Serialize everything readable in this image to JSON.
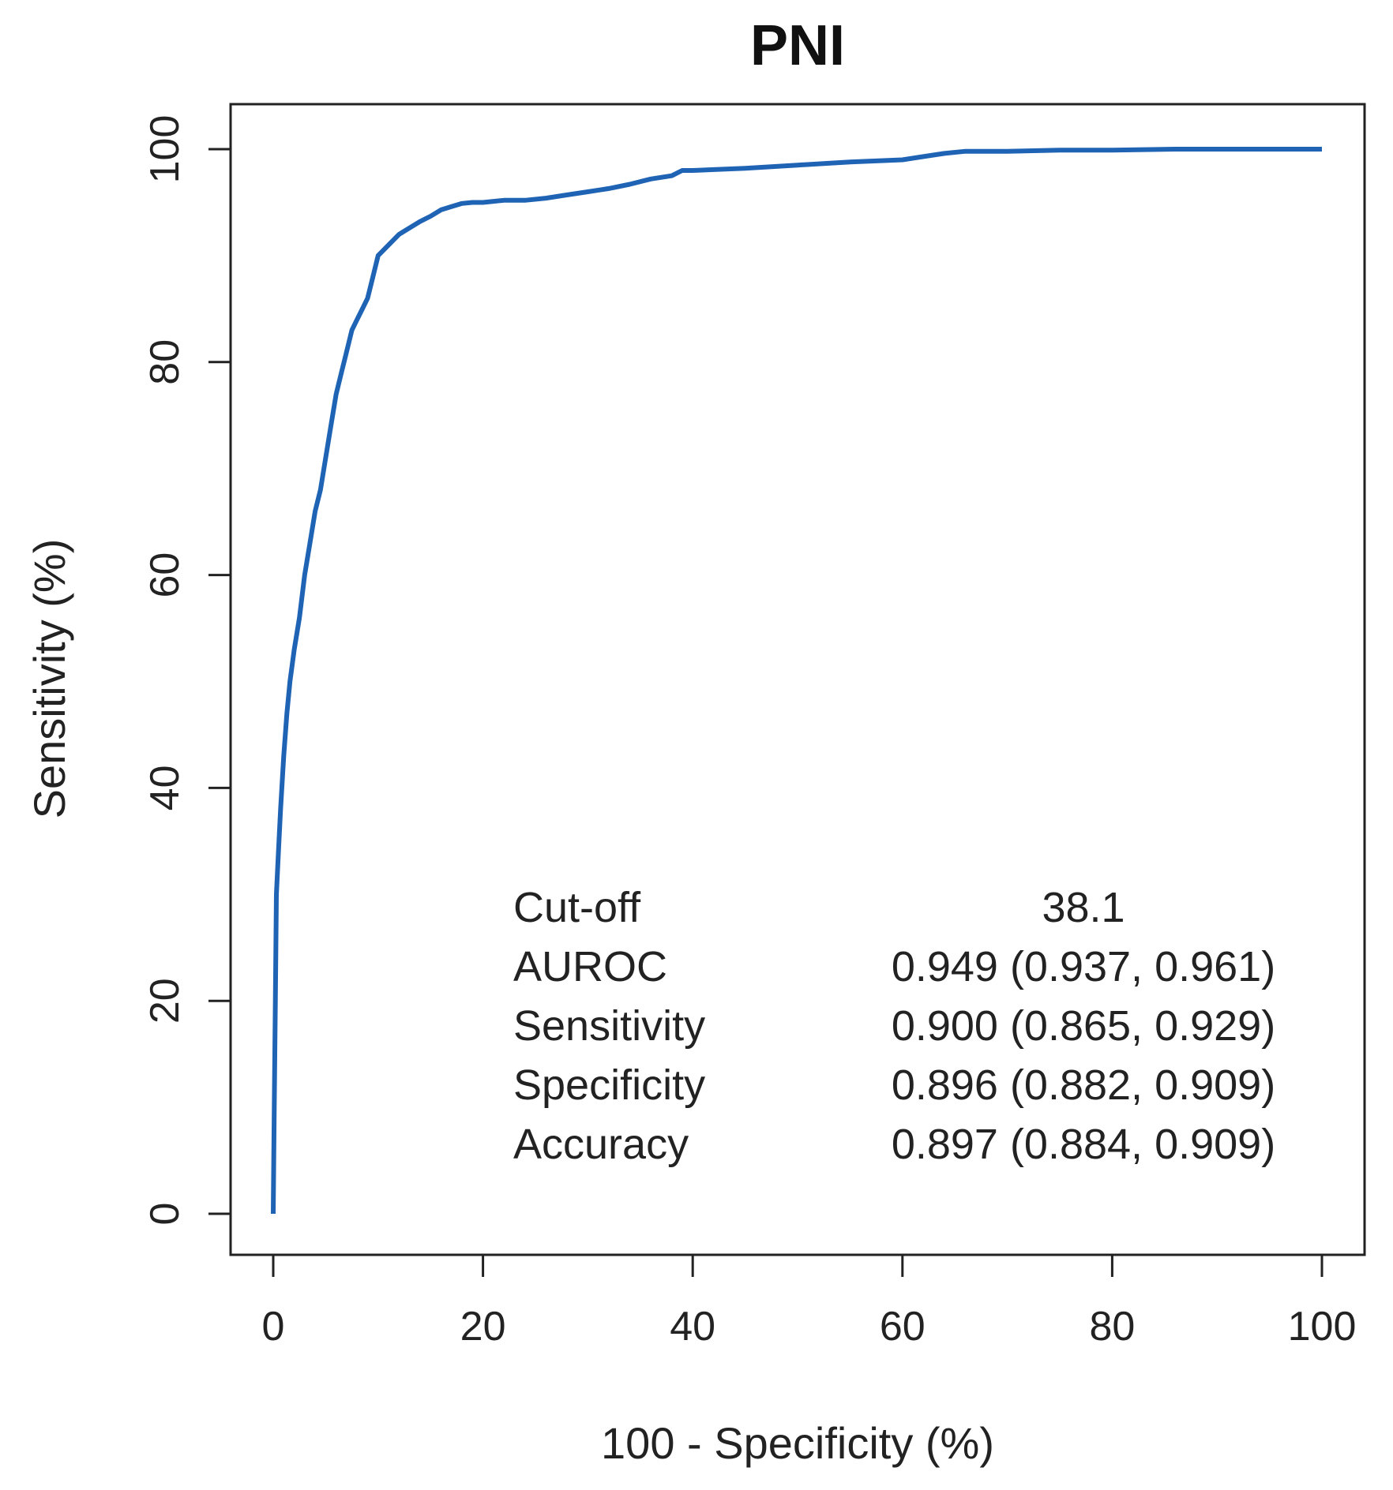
{
  "chart_data": {
    "type": "line",
    "title": "PNI",
    "xlabel": "100 - Specificity (%)",
    "ylabel": "Sensitivity (%)",
    "xlim": [
      0,
      100
    ],
    "ylim": [
      0,
      100
    ],
    "xticks": [
      "0",
      "20",
      "40",
      "60",
      "80",
      "100"
    ],
    "yticks": [
      "0",
      "20",
      "40",
      "60",
      "80",
      "100"
    ],
    "grid": false,
    "series": [
      {
        "name": "PNI",
        "color": "#1f63b4",
        "x": [
          0,
          0.1,
          0.2,
          0.3,
          0.5,
          0.7,
          1.0,
          1.3,
          1.6,
          2.0,
          2.5,
          3.0,
          3.5,
          4.0,
          4.5,
          5.0,
          5.5,
          6.0,
          6.5,
          7.0,
          7.5,
          8.0,
          8.5,
          9.0,
          9.5,
          10.0,
          11.0,
          12.0,
          13.0,
          14.0,
          15.0,
          16.0,
          17.0,
          18.0,
          19.0,
          20.0,
          22.0,
          24.0,
          26.0,
          28.0,
          30.0,
          32.0,
          34.0,
          36.0,
          38.0,
          39.0,
          40.0,
          45.0,
          50.0,
          55.0,
          60.0,
          62.0,
          64.0,
          66.0,
          70.0,
          75.0,
          80.0,
          86.0,
          90.0,
          95.0,
          100.0
        ],
        "y": [
          0,
          10,
          20,
          30,
          34,
          38,
          43,
          47,
          50,
          53,
          56,
          60,
          63,
          66,
          68,
          71,
          74,
          77,
          79,
          81,
          83,
          84,
          85,
          86,
          88,
          90,
          91,
          92,
          92.6,
          93.2,
          93.7,
          94.3,
          94.6,
          94.9,
          95.0,
          95.0,
          95.2,
          95.2,
          95.4,
          95.7,
          96.0,
          96.3,
          96.7,
          97.2,
          97.5,
          98.0,
          98.0,
          98.2,
          98.5,
          98.8,
          99.0,
          99.3,
          99.6,
          99.8,
          99.8,
          99.9,
          99.9,
          100,
          100,
          100,
          100
        ]
      }
    ],
    "annotation_rows": [
      {
        "label": "Cut-off",
        "value": "38.1"
      },
      {
        "label": "AUROC",
        "value": "0.949 (0.937, 0.961)"
      },
      {
        "label": "Sensitivity",
        "value": "0.900 (0.865, 0.929)"
      },
      {
        "label": "Specificity",
        "value": "0.896 (0.882, 0.909)"
      },
      {
        "label": "Accuracy",
        "value": "0.897 (0.884, 0.909)"
      }
    ]
  }
}
